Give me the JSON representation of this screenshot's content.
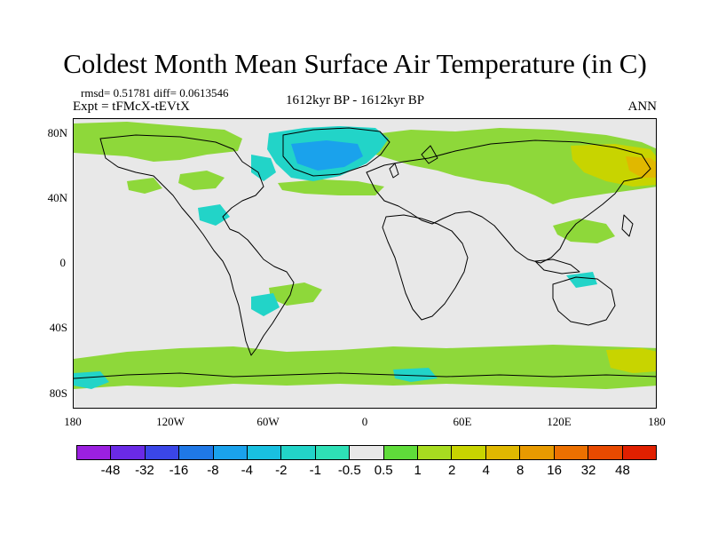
{
  "title": "Coldest Month Mean Surface Air Temperature (in C)",
  "stats": {
    "rmsd": "rmsd= 0.51781 diff= 0.0613546",
    "expt": "Expt = tFMcX-tEVtX",
    "period": "1612kyr BP - 1612kyr BP",
    "season": "ANN"
  },
  "axes": {
    "lat_ticks": [
      "80N",
      "40N",
      "0",
      "40S",
      "80S"
    ],
    "lon_ticks": [
      "180",
      "120W",
      "60W",
      "0",
      "60E",
      "120E",
      "180"
    ]
  },
  "colorbar": {
    "labels": [
      "-48",
      "-32",
      "-16",
      "-8",
      "-4",
      "-2",
      "-1",
      "-0.5",
      "0.5",
      "1",
      "2",
      "4",
      "8",
      "16",
      "32",
      "48"
    ],
    "colors": [
      "#9b20e0",
      "#6a2ae6",
      "#3a46e8",
      "#1f78e6",
      "#1aa2ec",
      "#19c0e0",
      "#22d4c8",
      "#2ee0b6",
      "#e8e8e8",
      "#5fdc3a",
      "#a7dc20",
      "#c8d400",
      "#e0b800",
      "#e89a00",
      "#ec7000",
      "#e84a00",
      "#e02000"
    ]
  },
  "colors": {
    "background_no_change": "#e8e8e8",
    "coast": "#000000"
  }
}
